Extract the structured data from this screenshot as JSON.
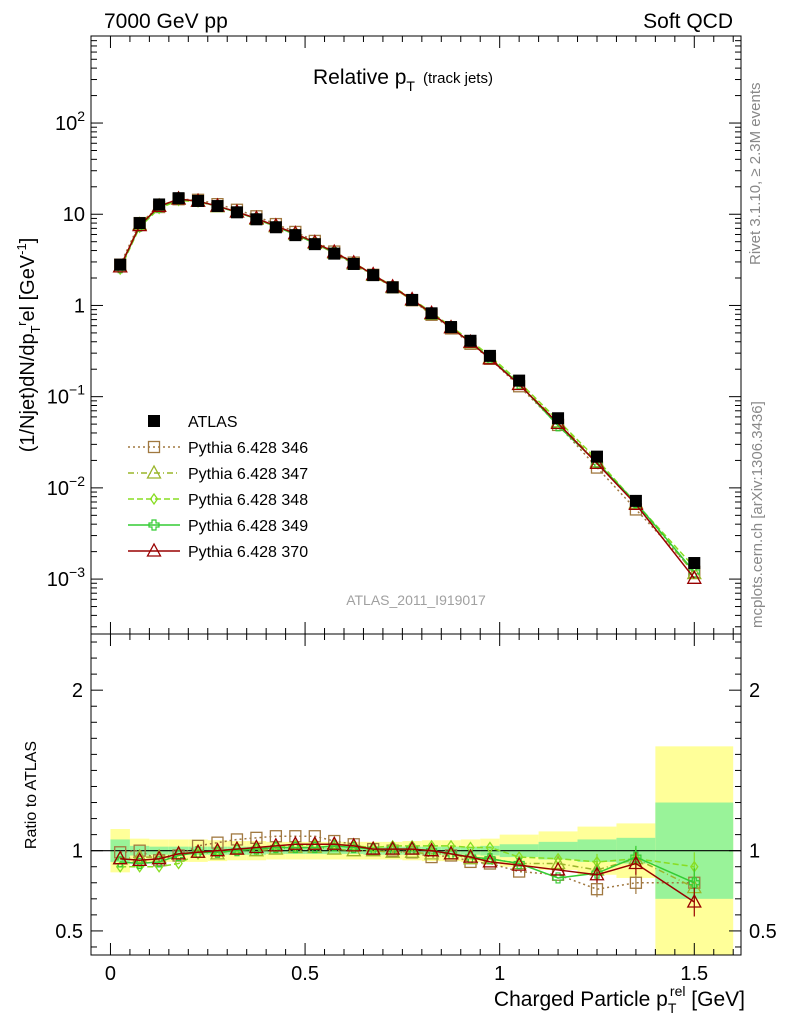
{
  "header": {
    "left": "7000 GeV pp",
    "right": "Soft QCD"
  },
  "side": {
    "rivet": "Rivet 3.1.10, ≥ 2.3M events",
    "mcplots": "mcplots.cern.ch [arXiv:1306.3436]"
  },
  "watermark": "ATLAS_2011_I919017",
  "chart_data": [
    {
      "type": "scatter",
      "panel": "main",
      "title": "Relative p_T (track jets)",
      "title_main": "Relative p",
      "title_sub": "T",
      "title_suffix": "(track jets)",
      "ylabel": "(1/Njet)dN/dp_T^rel [GeV^-1]",
      "y_scale": "log",
      "xlim": [
        -0.05,
        1.62
      ],
      "ylim": [
        0.00025,
        900
      ],
      "y_ticks": [
        {
          "v": 0.001,
          "m": "10",
          "e": "−3"
        },
        {
          "v": 0.01,
          "m": "10",
          "e": "−2"
        },
        {
          "v": 0.1,
          "m": "10",
          "e": "−1"
        },
        {
          "v": 1,
          "m": "1",
          "e": ""
        },
        {
          "v": 10,
          "m": "10",
          "e": ""
        },
        {
          "v": 100,
          "m": "10",
          "e": "2"
        }
      ],
      "x": [
        0.025,
        0.075,
        0.125,
        0.175,
        0.225,
        0.275,
        0.325,
        0.375,
        0.425,
        0.475,
        0.525,
        0.575,
        0.625,
        0.675,
        0.725,
        0.775,
        0.825,
        0.875,
        0.925,
        0.975,
        1.05,
        1.15,
        1.25,
        1.35,
        1.5
      ],
      "atlas": [
        2.8,
        8.0,
        12.8,
        15.0,
        14.0,
        12.3,
        10.5,
        8.8,
        7.2,
        5.9,
        4.7,
        3.7,
        2.85,
        2.15,
        1.58,
        1.15,
        0.82,
        0.58,
        0.41,
        0.28,
        0.15,
        0.058,
        0.022,
        0.0072,
        0.0015
      ],
      "legend": [
        {
          "label": "ATLAS",
          "color": "#000000",
          "marker": "square-filled",
          "dash": ""
        },
        {
          "label": "Pythia 6.428 346",
          "color": "#a07840",
          "marker": "square",
          "dash": "2,3"
        },
        {
          "label": "Pythia 6.428 347",
          "color": "#9ab52a",
          "marker": "triangle",
          "dash": "6,3,1,3"
        },
        {
          "label": "Pythia 6.428 348",
          "color": "#88dd22",
          "marker": "diamond",
          "dash": "6,3"
        },
        {
          "label": "Pythia 6.428 349",
          "color": "#33cc33",
          "marker": "cross",
          "dash": ""
        },
        {
          "label": "Pythia 6.428 370",
          "color": "#990000",
          "marker": "triangle",
          "dash": ""
        }
      ],
      "series": [
        {
          "values": [
            2.8,
            8.0,
            12.0,
            14.6,
            14.4,
            12.9,
            11.2,
            9.5,
            7.8,
            6.4,
            5.1,
            3.9,
            2.95,
            2.17,
            1.58,
            1.14,
            0.79,
            0.56,
            0.38,
            0.26,
            0.13,
            0.049,
            0.0167,
            0.0058,
            0.0012
          ]
        },
        {
          "values": [
            2.65,
            7.7,
            12.3,
            14.7,
            13.9,
            12.1,
            10.6,
            8.8,
            7.3,
            6.0,
            4.8,
            3.75,
            2.85,
            2.14,
            1.57,
            1.14,
            0.8,
            0.57,
            0.39,
            0.265,
            0.137,
            0.053,
            0.0193,
            0.0068,
            0.00115
          ]
        },
        {
          "values": [
            2.5,
            7.2,
            11.6,
            14.2,
            13.7,
            12.3,
            10.6,
            8.9,
            7.4,
            6.1,
            4.9,
            3.85,
            2.93,
            2.2,
            1.62,
            1.18,
            0.84,
            0.59,
            0.41,
            0.28,
            0.145,
            0.055,
            0.0205,
            0.0068,
            0.00135
          ]
        },
        {
          "values": [
            2.6,
            7.4,
            12.0,
            14.6,
            13.9,
            12.2,
            10.5,
            8.9,
            7.3,
            6.0,
            4.8,
            3.8,
            2.9,
            2.17,
            1.6,
            1.16,
            0.82,
            0.57,
            0.395,
            0.265,
            0.138,
            0.048,
            0.019,
            0.0069,
            0.0012
          ]
        },
        {
          "values": [
            2.65,
            7.5,
            12.2,
            14.7,
            13.9,
            12.3,
            10.6,
            9.0,
            7.45,
            6.15,
            4.9,
            3.85,
            2.93,
            2.18,
            1.6,
            1.16,
            0.82,
            0.57,
            0.395,
            0.26,
            0.136,
            0.051,
            0.0186,
            0.0066,
            0.00102
          ]
        }
      ]
    },
    {
      "type": "scatter",
      "panel": "ratio",
      "xlabel": "Charged Particle p_T^rel [GeV]",
      "xlabel_pre": "Charged Particle p",
      "xlabel_sub": "T",
      "xlabel_sup": "rel",
      "xlabel_post": " [GeV]",
      "ylabel": "Ratio to ATLAS",
      "xlim": [
        -0.05,
        1.62
      ],
      "ylim": [
        0.35,
        2.35
      ],
      "x_ticks": [
        0,
        0.5,
        1,
        1.5
      ],
      "x_tick_labels": [
        "0",
        "0.5",
        "1",
        "1.5"
      ],
      "y_ticks": [
        0.5,
        1,
        2
      ],
      "y_tick_labels": [
        "0.5",
        "1",
        "2"
      ],
      "x": [
        0.025,
        0.075,
        0.125,
        0.175,
        0.225,
        0.275,
        0.325,
        0.375,
        0.425,
        0.475,
        0.525,
        0.575,
        0.625,
        0.675,
        0.725,
        0.775,
        0.825,
        0.875,
        0.925,
        0.975,
        1.05,
        1.15,
        1.25,
        1.35,
        1.5
      ],
      "band_edges": [
        0,
        0.05,
        0.1,
        0.15,
        0.2,
        0.25,
        0.3,
        0.35,
        0.4,
        0.45,
        0.5,
        0.55,
        0.6,
        0.65,
        0.7,
        0.75,
        0.8,
        0.85,
        0.9,
        0.95,
        1.0,
        1.1,
        1.2,
        1.3,
        1.4,
        1.6
      ],
      "band_outer": [
        0.135,
        0.075,
        0.07,
        0.07,
        0.07,
        0.065,
        0.06,
        0.06,
        0.055,
        0.055,
        0.055,
        0.055,
        0.055,
        0.055,
        0.055,
        0.06,
        0.065,
        0.065,
        0.07,
        0.075,
        0.1,
        0.12,
        0.15,
        0.17,
        0.65
      ],
      "band_inner": [
        0.07,
        0.03,
        0.025,
        0.025,
        0.025,
        0.025,
        0.025,
        0.025,
        0.02,
        0.02,
        0.02,
        0.02,
        0.02,
        0.025,
        0.025,
        0.025,
        0.025,
        0.025,
        0.025,
        0.03,
        0.04,
        0.055,
        0.07,
        0.08,
        0.3
      ],
      "band_outer_color": "#ffff99",
      "band_inner_color": "#99f399",
      "series": [
        {
          "values": [
            0.99,
            1.0,
            0.94,
            0.97,
            1.03,
            1.05,
            1.07,
            1.08,
            1.09,
            1.09,
            1.09,
            1.06,
            1.04,
            1.01,
            1.0,
            0.99,
            0.96,
            0.97,
            0.93,
            0.92,
            0.87,
            0.85,
            0.76,
            0.8,
            0.8
          ]
        },
        {
          "values": [
            0.95,
            0.96,
            0.96,
            0.98,
            0.99,
            0.98,
            1.01,
            1.0,
            1.01,
            1.02,
            1.02,
            1.01,
            1.0,
            1.0,
            0.99,
            0.99,
            0.98,
            0.98,
            0.95,
            0.95,
            0.92,
            0.92,
            0.88,
            0.95,
            0.77
          ]
        },
        {
          "values": [
            0.9,
            0.9,
            0.9,
            0.92,
            0.98,
            1.0,
            1.01,
            1.01,
            1.02,
            1.03,
            1.04,
            1.04,
            1.03,
            1.02,
            1.03,
            1.03,
            1.03,
            1.03,
            1.02,
            1.02,
            0.96,
            0.95,
            0.93,
            0.95,
            0.9
          ]
        },
        {
          "values": [
            0.93,
            0.92,
            0.93,
            0.97,
            0.99,
            0.99,
            1.0,
            1.01,
            1.02,
            1.02,
            1.02,
            1.03,
            1.02,
            1.01,
            1.01,
            1.01,
            1.0,
            0.98,
            0.96,
            0.95,
            0.92,
            0.83,
            0.86,
            0.96,
            0.8
          ]
        },
        {
          "values": [
            0.95,
            0.94,
            0.95,
            0.98,
            0.99,
            1.0,
            1.01,
            1.02,
            1.03,
            1.04,
            1.04,
            1.04,
            1.03,
            1.01,
            1.01,
            1.01,
            1.0,
            0.98,
            0.96,
            0.93,
            0.91,
            0.88,
            0.85,
            0.92,
            0.68
          ]
        }
      ]
    }
  ]
}
